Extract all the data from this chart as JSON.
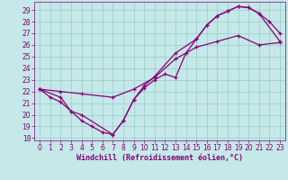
{
  "xlabel": "Windchill (Refroidissement éolien,°C)",
  "xlim": [
    -0.5,
    23.5
  ],
  "ylim": [
    17.8,
    29.7
  ],
  "xticks": [
    0,
    1,
    2,
    3,
    4,
    5,
    6,
    7,
    8,
    9,
    10,
    11,
    12,
    13,
    14,
    15,
    16,
    17,
    18,
    19,
    20,
    21,
    22,
    23
  ],
  "yticks": [
    18,
    19,
    20,
    21,
    22,
    23,
    24,
    25,
    26,
    27,
    28,
    29
  ],
  "bg_color": "#c5e8e8",
  "grid_color": "#9fcfcf",
  "line_color": "#880077",
  "line1_x": [
    0,
    1,
    2,
    3,
    4,
    5,
    6,
    7,
    8,
    9,
    10,
    11,
    12,
    13,
    14,
    15,
    16,
    17,
    18,
    19,
    20,
    21,
    22,
    23
  ],
  "line1_y": [
    22.2,
    21.5,
    21.1,
    20.3,
    19.5,
    19.0,
    18.5,
    18.3,
    19.5,
    21.3,
    22.3,
    23.0,
    23.5,
    23.2,
    25.3,
    26.5,
    27.7,
    28.5,
    28.9,
    29.3,
    29.2,
    28.7,
    28.0,
    27.0
  ],
  "line2_x": [
    0,
    2,
    4,
    7,
    9,
    11,
    13,
    15,
    17,
    19,
    21,
    23
  ],
  "line2_y": [
    22.2,
    22.0,
    21.8,
    21.5,
    22.2,
    23.2,
    24.8,
    25.8,
    26.3,
    26.8,
    26.0,
    26.2
  ],
  "line3_x": [
    0,
    2,
    3,
    4,
    7,
    8,
    9,
    10,
    11,
    13,
    15,
    16,
    17,
    18,
    19,
    20,
    21,
    23
  ],
  "line3_y": [
    22.2,
    21.5,
    20.3,
    20.0,
    18.3,
    19.5,
    21.3,
    22.5,
    23.3,
    25.3,
    26.5,
    27.7,
    28.5,
    28.9,
    29.3,
    29.2,
    28.7,
    26.3
  ],
  "tick_fontsize": 5.5,
  "label_fontsize": 6.0
}
